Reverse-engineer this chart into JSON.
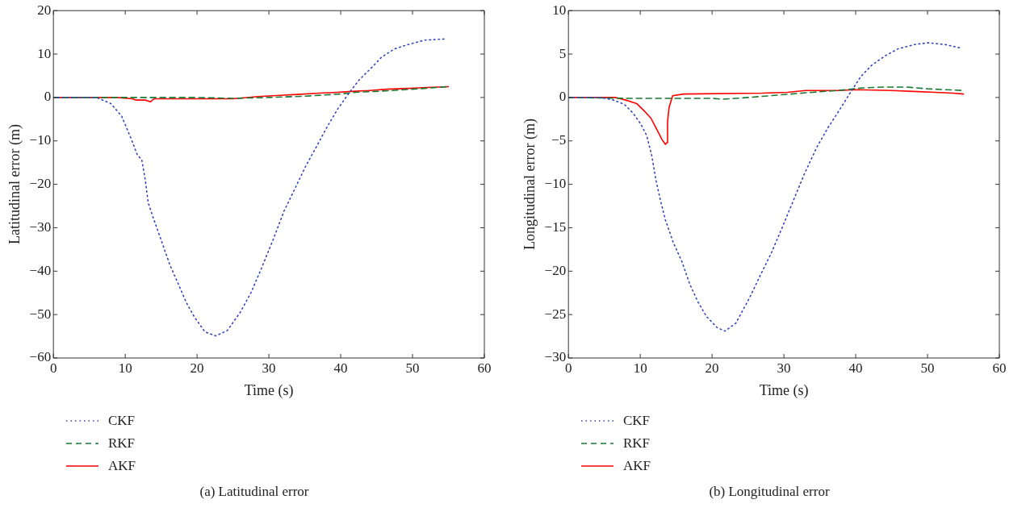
{
  "chart_data": [
    {
      "type": "line",
      "title": "(a)  Latitudinal error",
      "xlabel": "Time (s)",
      "ylabel": "Latitudinal error (m)",
      "xlim": [
        0,
        60
      ],
      "xticks": [
        0,
        10,
        20,
        30,
        40,
        50,
        60
      ],
      "ylim": [
        -60,
        20
      ],
      "yticks": [
        -60,
        -50,
        -40,
        -30,
        -20,
        -10,
        0,
        10,
        20
      ],
      "grid": false,
      "legend": "bottom left",
      "marker": "none",
      "series": [
        {
          "name": "CKF",
          "color": "#3344bb",
          "line_style": "dotted",
          "x": [
            0,
            6,
            8,
            9.5,
            10.8,
            11.7,
            12.3,
            12.8,
            13.2,
            14,
            15.1,
            16.2,
            17.4,
            18.5,
            19.6,
            21.1,
            22.6,
            24.2,
            26,
            27.5,
            29,
            30.6,
            32.1,
            33.6,
            35.1,
            36.6,
            38.1,
            39.6,
            41.1,
            42.6,
            44.2,
            45.7,
            47.5,
            49.4,
            51.7,
            54.7
          ],
          "values": [
            0,
            0,
            -1.4,
            -4.3,
            -9.4,
            -13.3,
            -14.3,
            -19.1,
            -24.3,
            -28.2,
            -33.3,
            -38.5,
            -43,
            -47.2,
            -50.5,
            -54,
            -54.9,
            -53.7,
            -49.5,
            -45,
            -39.2,
            -32.7,
            -26.2,
            -21.1,
            -15.9,
            -11.4,
            -6.8,
            -2.6,
            0.9,
            4.1,
            6.7,
            9.3,
            11.2,
            12.2,
            13.2,
            13.5
          ]
        },
        {
          "name": "RKF",
          "color": "#1a7a33",
          "line_style": "dashed",
          "x": [
            0,
            10,
            20,
            25,
            30,
            35,
            40,
            42,
            45,
            50,
            55
          ],
          "values": [
            0,
            0,
            0,
            -0.2,
            0,
            0.3,
            0.8,
            1.2,
            1.4,
            1.9,
            2.5
          ]
        },
        {
          "name": "AKF",
          "color": "#ff0000",
          "line_style": "solid",
          "x": [
            0,
            8.8,
            11,
            11.5,
            12.8,
            13.5,
            14,
            25,
            28.5,
            31.5,
            34,
            37,
            39.5,
            41.5,
            44,
            46.5,
            49.5,
            52,
            55
          ],
          "values": [
            0,
            0,
            -0.3,
            -0.6,
            -0.6,
            -1,
            -0.3,
            -0.3,
            0.2,
            0.5,
            0.7,
            1,
            1.2,
            1.4,
            1.6,
            1.9,
            2.1,
            2.3,
            2.5
          ]
        }
      ]
    },
    {
      "type": "line",
      "title": "(b)  Longitudinal error",
      "xlabel": "Time (s)",
      "ylabel": "Longitudinal error (m)",
      "xlim": [
        0,
        60
      ],
      "xticks": [
        0,
        10,
        20,
        30,
        40,
        50,
        60
      ],
      "ylim": [
        -30,
        10
      ],
      "yticks": [
        -30,
        -25,
        -20,
        -15,
        -10,
        -5,
        0,
        5,
        10
      ],
      "grid": false,
      "legend": "bottom left",
      "marker": "none",
      "series": [
        {
          "name": "CKF",
          "color": "#3344bb",
          "line_style": "dotted",
          "x": [
            0,
            4.5,
            6.3,
            7.8,
            9,
            10.1,
            10.9,
            11.6,
            12.2,
            12.8,
            13.5,
            14.6,
            15.8,
            16.9,
            18,
            19.2,
            20.7,
            21.8,
            23.3,
            25.2,
            26.7,
            28.2,
            29.7,
            31.2,
            32.8,
            34.6,
            36.2,
            37.7,
            39.2,
            40.7,
            42.2,
            44.1,
            45.9,
            48.2,
            50.1,
            52.4,
            54.6
          ],
          "values": [
            0,
            0,
            -0.3,
            -0.8,
            -1.8,
            -3.1,
            -4.4,
            -6.7,
            -9.6,
            -11.8,
            -14.1,
            -16.7,
            -18.9,
            -21.5,
            -23.5,
            -25.2,
            -26.5,
            -26.9,
            -26,
            -23.1,
            -20.5,
            -18,
            -15.1,
            -12.1,
            -8.9,
            -5.7,
            -3.4,
            -1.5,
            0.5,
            2.4,
            3.7,
            4.8,
            5.6,
            6.1,
            6.3,
            6.1,
            5.7
          ]
        },
        {
          "name": "RKF",
          "color": "#1a7a33",
          "line_style": "dashed",
          "x": [
            0,
            8,
            20,
            21.5,
            25,
            28,
            31,
            34,
            37.5,
            41,
            44,
            47,
            50,
            55
          ],
          "values": [
            0,
            -0.1,
            -0.1,
            -0.2,
            0,
            0.2,
            0.4,
            0.6,
            0.8,
            1.1,
            1.2,
            1.2,
            1,
            0.8
          ]
        },
        {
          "name": "AKF",
          "color": "#ff0000",
          "line_style": "solid",
          "x": [
            0,
            6.5,
            8,
            9.5,
            10.5,
            11.5,
            12,
            12.5,
            13,
            13.5,
            13.7,
            13.8,
            14,
            14.5,
            16,
            27,
            30.5,
            33,
            37.5,
            40,
            45,
            48,
            51,
            53.5,
            55
          ],
          "values": [
            0,
            0,
            -0.3,
            -0.7,
            -1.5,
            -2.4,
            -3.2,
            -4,
            -4.8,
            -5.4,
            -5.2,
            -2.8,
            -1.2,
            0.2,
            0.4,
            0.5,
            0.6,
            0.8,
            0.8,
            0.9,
            0.8,
            0.7,
            0.6,
            0.5,
            0.4
          ]
        }
      ]
    }
  ]
}
